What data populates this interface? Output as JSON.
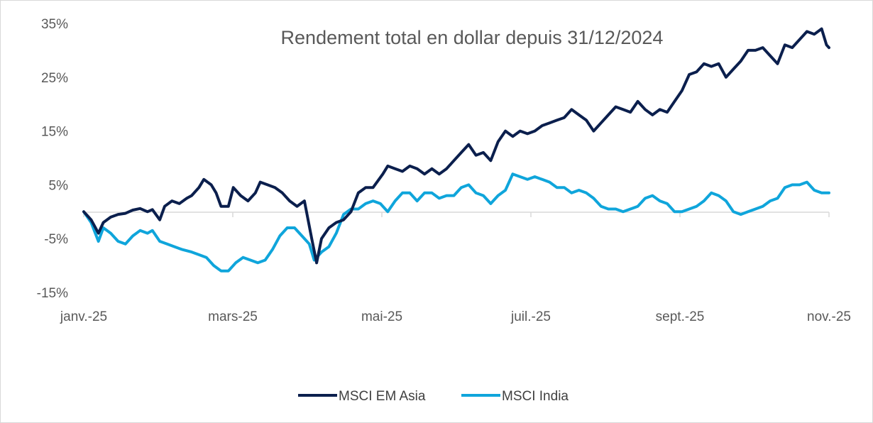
{
  "chart_data": {
    "type": "line",
    "title": "Rendement total en dollar depuis 31/12/2024",
    "xlabel": "",
    "ylabel": "",
    "x_ticks": [
      "janv.-25",
      "mars-25",
      "mai-25",
      "juil.-25",
      "sept.-25",
      "nov.-25"
    ],
    "y_ticks": [
      "35%",
      "25%",
      "15%",
      "5%",
      "-5%",
      "-15%"
    ],
    "ylim": [
      -15,
      35
    ],
    "xlim": [
      "2025-01-01",
      "2025-11-01"
    ],
    "grid": false,
    "legend_position": "bottom",
    "series": [
      {
        "name": "MSCI EM Asia",
        "color": "#0b1f4d",
        "points": [
          [
            "2025-01-01",
            0.0
          ],
          [
            "2025-01-04",
            -1.5
          ],
          [
            "2025-01-07",
            -4.0
          ],
          [
            "2025-01-09",
            -2.0
          ],
          [
            "2025-01-12",
            -1.0
          ],
          [
            "2025-01-15",
            -0.5
          ],
          [
            "2025-01-18",
            -0.3
          ],
          [
            "2025-01-21",
            0.3
          ],
          [
            "2025-01-24",
            0.6
          ],
          [
            "2025-01-27",
            0.0
          ],
          [
            "2025-01-29",
            0.4
          ],
          [
            "2025-02-01",
            -1.5
          ],
          [
            "2025-02-03",
            1.0
          ],
          [
            "2025-02-06",
            2.0
          ],
          [
            "2025-02-09",
            1.5
          ],
          [
            "2025-02-12",
            2.5
          ],
          [
            "2025-02-14",
            3.0
          ],
          [
            "2025-02-17",
            4.5
          ],
          [
            "2025-02-19",
            6.0
          ],
          [
            "2025-02-22",
            5.0
          ],
          [
            "2025-02-24",
            3.5
          ],
          [
            "2025-02-26",
            1.0
          ],
          [
            "2025-03-01",
            1.0
          ],
          [
            "2025-03-03",
            4.5
          ],
          [
            "2025-03-06",
            3.0
          ],
          [
            "2025-03-09",
            2.0
          ],
          [
            "2025-03-12",
            3.5
          ],
          [
            "2025-03-14",
            5.5
          ],
          [
            "2025-03-17",
            5.0
          ],
          [
            "2025-03-20",
            4.5
          ],
          [
            "2025-03-23",
            3.5
          ],
          [
            "2025-03-26",
            2.0
          ],
          [
            "2025-03-29",
            1.0
          ],
          [
            "2025-04-01",
            2.0
          ],
          [
            "2025-04-04",
            -5.0
          ],
          [
            "2025-04-06",
            -9.5
          ],
          [
            "2025-04-08",
            -5.0
          ],
          [
            "2025-04-11",
            -3.0
          ],
          [
            "2025-04-14",
            -2.0
          ],
          [
            "2025-04-17",
            -1.5
          ],
          [
            "2025-04-20",
            0.0
          ],
          [
            "2025-04-23",
            3.5
          ],
          [
            "2025-04-26",
            4.5
          ],
          [
            "2025-04-29",
            4.5
          ],
          [
            "2025-05-03",
            7.0
          ],
          [
            "2025-05-05",
            8.5
          ],
          [
            "2025-05-08",
            8.0
          ],
          [
            "2025-05-11",
            7.5
          ],
          [
            "2025-05-14",
            8.5
          ],
          [
            "2025-05-17",
            8.0
          ],
          [
            "2025-05-20",
            7.0
          ],
          [
            "2025-05-23",
            8.0
          ],
          [
            "2025-05-26",
            7.0
          ],
          [
            "2025-05-29",
            8.0
          ],
          [
            "2025-06-01",
            9.5
          ],
          [
            "2025-06-04",
            11.0
          ],
          [
            "2025-06-07",
            12.5
          ],
          [
            "2025-06-10",
            10.5
          ],
          [
            "2025-06-13",
            11.0
          ],
          [
            "2025-06-16",
            9.5
          ],
          [
            "2025-06-19",
            13.0
          ],
          [
            "2025-06-22",
            15.0
          ],
          [
            "2025-06-25",
            14.0
          ],
          [
            "2025-06-28",
            15.0
          ],
          [
            "2025-07-01",
            14.5
          ],
          [
            "2025-07-04",
            15.0
          ],
          [
            "2025-07-07",
            16.0
          ],
          [
            "2025-07-10",
            16.5
          ],
          [
            "2025-07-13",
            17.0
          ],
          [
            "2025-07-16",
            17.5
          ],
          [
            "2025-07-19",
            19.0
          ],
          [
            "2025-07-22",
            18.0
          ],
          [
            "2025-07-25",
            17.0
          ],
          [
            "2025-07-28",
            15.0
          ],
          [
            "2025-07-31",
            16.5
          ],
          [
            "2025-08-03",
            18.0
          ],
          [
            "2025-08-06",
            19.5
          ],
          [
            "2025-08-09",
            19.0
          ],
          [
            "2025-08-12",
            18.5
          ],
          [
            "2025-08-15",
            20.5
          ],
          [
            "2025-08-18",
            19.0
          ],
          [
            "2025-08-21",
            18.0
          ],
          [
            "2025-08-24",
            19.0
          ],
          [
            "2025-08-27",
            18.5
          ],
          [
            "2025-08-30",
            20.5
          ],
          [
            "2025-09-02",
            22.5
          ],
          [
            "2025-09-05",
            25.5
          ],
          [
            "2025-09-08",
            26.0
          ],
          [
            "2025-09-11",
            27.5
          ],
          [
            "2025-09-14",
            27.0
          ],
          [
            "2025-09-17",
            27.5
          ],
          [
            "2025-09-20",
            25.0
          ],
          [
            "2025-09-23",
            26.5
          ],
          [
            "2025-09-26",
            28.0
          ],
          [
            "2025-09-29",
            30.0
          ],
          [
            "2025-10-02",
            30.0
          ],
          [
            "2025-10-05",
            30.5
          ],
          [
            "2025-10-08",
            29.0
          ],
          [
            "2025-10-11",
            27.5
          ],
          [
            "2025-10-14",
            31.0
          ],
          [
            "2025-10-17",
            30.5
          ],
          [
            "2025-10-20",
            32.0
          ],
          [
            "2025-10-23",
            33.5
          ],
          [
            "2025-10-26",
            33.0
          ],
          [
            "2025-10-29",
            34.0
          ],
          [
            "2025-10-31",
            31.0
          ],
          [
            "2025-11-01",
            30.5
          ]
        ]
      },
      {
        "name": "MSCI India",
        "color": "#0fa5db",
        "points": [
          [
            "2025-01-01",
            0.0
          ],
          [
            "2025-01-04",
            -2.0
          ],
          [
            "2025-01-07",
            -5.5
          ],
          [
            "2025-01-09",
            -3.0
          ],
          [
            "2025-01-12",
            -4.0
          ],
          [
            "2025-01-15",
            -5.5
          ],
          [
            "2025-01-18",
            -6.0
          ],
          [
            "2025-01-21",
            -4.5
          ],
          [
            "2025-01-24",
            -3.5
          ],
          [
            "2025-01-27",
            -4.0
          ],
          [
            "2025-01-29",
            -3.5
          ],
          [
            "2025-02-01",
            -5.5
          ],
          [
            "2025-02-04",
            -6.0
          ],
          [
            "2025-02-07",
            -6.5
          ],
          [
            "2025-02-10",
            -7.0
          ],
          [
            "2025-02-14",
            -7.5
          ],
          [
            "2025-02-17",
            -8.0
          ],
          [
            "2025-02-20",
            -8.5
          ],
          [
            "2025-02-23",
            -10.0
          ],
          [
            "2025-02-26",
            -11.0
          ],
          [
            "2025-03-01",
            -11.0
          ],
          [
            "2025-03-04",
            -9.5
          ],
          [
            "2025-03-07",
            -8.5
          ],
          [
            "2025-03-10",
            -9.0
          ],
          [
            "2025-03-13",
            -9.5
          ],
          [
            "2025-03-16",
            -9.0
          ],
          [
            "2025-03-19",
            -7.0
          ],
          [
            "2025-03-22",
            -4.5
          ],
          [
            "2025-03-25",
            -3.0
          ],
          [
            "2025-03-28",
            -3.0
          ],
          [
            "2025-03-31",
            -4.5
          ],
          [
            "2025-04-03",
            -6.0
          ],
          [
            "2025-04-05",
            -9.0
          ],
          [
            "2025-04-08",
            -7.5
          ],
          [
            "2025-04-11",
            -6.5
          ],
          [
            "2025-04-14",
            -4.0
          ],
          [
            "2025-04-17",
            -0.5
          ],
          [
            "2025-04-20",
            0.5
          ],
          [
            "2025-04-23",
            0.5
          ],
          [
            "2025-04-26",
            1.5
          ],
          [
            "2025-04-29",
            2.0
          ],
          [
            "2025-05-02",
            1.5
          ],
          [
            "2025-05-05",
            0.0
          ],
          [
            "2025-05-08",
            2.0
          ],
          [
            "2025-05-11",
            3.5
          ],
          [
            "2025-05-14",
            3.5
          ],
          [
            "2025-05-17",
            2.0
          ],
          [
            "2025-05-20",
            3.5
          ],
          [
            "2025-05-23",
            3.5
          ],
          [
            "2025-05-26",
            2.5
          ],
          [
            "2025-05-29",
            3.0
          ],
          [
            "2025-06-01",
            3.0
          ],
          [
            "2025-06-04",
            4.5
          ],
          [
            "2025-06-07",
            5.0
          ],
          [
            "2025-06-10",
            3.5
          ],
          [
            "2025-06-13",
            3.0
          ],
          [
            "2025-06-16",
            1.5
          ],
          [
            "2025-06-19",
            3.0
          ],
          [
            "2025-06-22",
            4.0
          ],
          [
            "2025-06-25",
            7.0
          ],
          [
            "2025-06-28",
            6.5
          ],
          [
            "2025-07-01",
            6.0
          ],
          [
            "2025-07-04",
            6.5
          ],
          [
            "2025-07-07",
            6.0
          ],
          [
            "2025-07-10",
            5.5
          ],
          [
            "2025-07-13",
            4.5
          ],
          [
            "2025-07-16",
            4.5
          ],
          [
            "2025-07-19",
            3.5
          ],
          [
            "2025-07-22",
            4.0
          ],
          [
            "2025-07-25",
            3.5
          ],
          [
            "2025-07-28",
            2.5
          ],
          [
            "2025-07-31",
            1.0
          ],
          [
            "2025-08-03",
            0.5
          ],
          [
            "2025-08-06",
            0.5
          ],
          [
            "2025-08-09",
            0.0
          ],
          [
            "2025-08-12",
            0.5
          ],
          [
            "2025-08-15",
            1.0
          ],
          [
            "2025-08-18",
            2.5
          ],
          [
            "2025-08-21",
            3.0
          ],
          [
            "2025-08-24",
            2.0
          ],
          [
            "2025-08-27",
            1.5
          ],
          [
            "2025-08-30",
            0.0
          ],
          [
            "2025-09-02",
            0.0
          ],
          [
            "2025-09-05",
            0.5
          ],
          [
            "2025-09-08",
            1.0
          ],
          [
            "2025-09-11",
            2.0
          ],
          [
            "2025-09-14",
            3.5
          ],
          [
            "2025-09-17",
            3.0
          ],
          [
            "2025-09-20",
            2.0
          ],
          [
            "2025-09-23",
            0.0
          ],
          [
            "2025-09-26",
            -0.5
          ],
          [
            "2025-09-29",
            0.0
          ],
          [
            "2025-10-02",
            0.5
          ],
          [
            "2025-10-05",
            1.0
          ],
          [
            "2025-10-08",
            2.0
          ],
          [
            "2025-10-11",
            2.5
          ],
          [
            "2025-10-14",
            4.5
          ],
          [
            "2025-10-17",
            5.0
          ],
          [
            "2025-10-20",
            5.0
          ],
          [
            "2025-10-23",
            5.5
          ],
          [
            "2025-10-26",
            4.0
          ],
          [
            "2025-10-29",
            3.5
          ],
          [
            "2025-11-01",
            3.5
          ]
        ]
      }
    ]
  }
}
